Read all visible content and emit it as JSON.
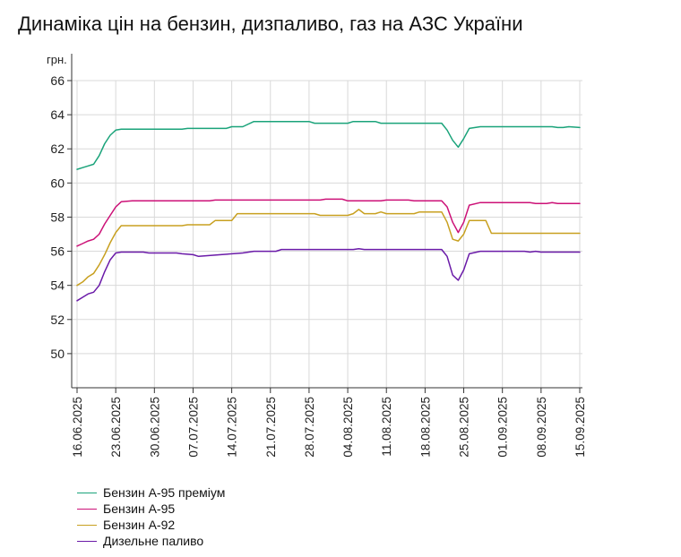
{
  "chart_data": {
    "type": "line",
    "title": "Динаміка цін на бензин, дизпаливо, газ на АЗС України",
    "ylabel": "грн.",
    "xlabel": "",
    "ylim": [
      48,
      66
    ],
    "y_ticks": [
      50,
      52,
      54,
      56,
      58,
      60,
      62,
      64,
      66
    ],
    "x_tick_labels": [
      "16.06.2025",
      "23.06.2025",
      "30.06.2025",
      "07.07.2025",
      "14.07.2025",
      "21.07.2025",
      "28.07.2025",
      "04.08.2025",
      "11.08.2025",
      "18.08.2025",
      "25.08.2025",
      "01.09.2025",
      "08.09.2025",
      "15.09.2025"
    ],
    "grid": true,
    "legend_position": "bottom-left",
    "series": [
      {
        "name": "Бензин А-95 преміум",
        "color": "#1aa37a",
        "points": [
          [
            "16.06.2025",
            60.8
          ],
          [
            "17.06.2025",
            60.9
          ],
          [
            "18.06.2025",
            61.0
          ],
          [
            "19.06.2025",
            61.1
          ],
          [
            "20.06.2025",
            61.6
          ],
          [
            "21.06.2025",
            62.3
          ],
          [
            "22.06.2025",
            62.8
          ],
          [
            "23.06.2025",
            63.1
          ],
          [
            "24.06.2025",
            63.15
          ],
          [
            "26.06.2025",
            63.15
          ],
          [
            "30.06.2025",
            63.15
          ],
          [
            "05.07.2025",
            63.15
          ],
          [
            "06.07.2025",
            63.2
          ],
          [
            "13.07.2025",
            63.2
          ],
          [
            "14.07.2025",
            63.3
          ],
          [
            "16.07.2025",
            63.3
          ],
          [
            "18.07.2025",
            63.6
          ],
          [
            "28.07.2025",
            63.6
          ],
          [
            "29.07.2025",
            63.5
          ],
          [
            "04.08.2025",
            63.5
          ],
          [
            "05.08.2025",
            63.6
          ],
          [
            "09.08.2025",
            63.6
          ],
          [
            "10.08.2025",
            63.5
          ],
          [
            "21.08.2025",
            63.5
          ],
          [
            "22.08.2025",
            63.1
          ],
          [
            "23.08.2025",
            62.5
          ],
          [
            "24.08.2025",
            62.1
          ],
          [
            "25.08.2025",
            62.6
          ],
          [
            "26.08.2025",
            63.2
          ],
          [
            "28.08.2025",
            63.3
          ],
          [
            "10.09.2025",
            63.3
          ],
          [
            "11.09.2025",
            63.25
          ],
          [
            "12.09.2025",
            63.25
          ],
          [
            "13.09.2025",
            63.3
          ],
          [
            "15.09.2025",
            63.25
          ]
        ]
      },
      {
        "name": "Бензин А-95",
        "color": "#cc1177",
        "points": [
          [
            "16.06.2025",
            56.3
          ],
          [
            "17.06.2025",
            56.45
          ],
          [
            "18.06.2025",
            56.6
          ],
          [
            "19.06.2025",
            56.7
          ],
          [
            "20.06.2025",
            57.0
          ],
          [
            "21.06.2025",
            57.6
          ],
          [
            "22.06.2025",
            58.1
          ],
          [
            "23.06.2025",
            58.6
          ],
          [
            "24.06.2025",
            58.9
          ],
          [
            "26.06.2025",
            58.95
          ],
          [
            "10.07.2025",
            58.95
          ],
          [
            "11.07.2025",
            59.0
          ],
          [
            "30.07.2025",
            59.0
          ],
          [
            "31.07.2025",
            59.05
          ],
          [
            "03.08.2025",
            59.05
          ],
          [
            "04.08.2025",
            58.95
          ],
          [
            "10.08.2025",
            58.95
          ],
          [
            "11.08.2025",
            59.0
          ],
          [
            "15.08.2025",
            59.0
          ],
          [
            "16.08.2025",
            58.95
          ],
          [
            "21.08.2025",
            58.95
          ],
          [
            "22.08.2025",
            58.6
          ],
          [
            "23.08.2025",
            57.7
          ],
          [
            "24.08.2025",
            57.1
          ],
          [
            "25.08.2025",
            57.7
          ],
          [
            "26.08.2025",
            58.7
          ],
          [
            "28.08.2025",
            58.85
          ],
          [
            "06.09.2025",
            58.85
          ],
          [
            "07.09.2025",
            58.8
          ],
          [
            "09.09.2025",
            58.8
          ],
          [
            "10.09.2025",
            58.85
          ],
          [
            "11.09.2025",
            58.8
          ],
          [
            "15.09.2025",
            58.8
          ]
        ]
      },
      {
        "name": "Бензин А-92",
        "color": "#c8a020",
        "points": [
          [
            "16.06.2025",
            54.0
          ],
          [
            "17.06.2025",
            54.2
          ],
          [
            "18.06.2025",
            54.5
          ],
          [
            "19.06.2025",
            54.7
          ],
          [
            "20.06.2025",
            55.2
          ],
          [
            "21.06.2025",
            55.8
          ],
          [
            "22.06.2025",
            56.5
          ],
          [
            "23.06.2025",
            57.1
          ],
          [
            "24.06.2025",
            57.5
          ],
          [
            "05.07.2025",
            57.5
          ],
          [
            "06.07.2025",
            57.55
          ],
          [
            "10.07.2025",
            57.55
          ],
          [
            "11.07.2025",
            57.8
          ],
          [
            "14.07.2025",
            57.8
          ],
          [
            "15.07.2025",
            58.2
          ],
          [
            "29.07.2025",
            58.2
          ],
          [
            "30.07.2025",
            58.1
          ],
          [
            "04.08.2025",
            58.1
          ],
          [
            "05.08.2025",
            58.2
          ],
          [
            "06.08.2025",
            58.45
          ],
          [
            "07.08.2025",
            58.2
          ],
          [
            "09.08.2025",
            58.2
          ],
          [
            "10.08.2025",
            58.3
          ],
          [
            "11.08.2025",
            58.2
          ],
          [
            "16.08.2025",
            58.2
          ],
          [
            "17.08.2025",
            58.3
          ],
          [
            "21.08.2025",
            58.3
          ],
          [
            "22.08.2025",
            57.7
          ],
          [
            "23.08.2025",
            56.7
          ],
          [
            "24.08.2025",
            56.6
          ],
          [
            "25.08.2025",
            57.0
          ],
          [
            "26.08.2025",
            57.8
          ],
          [
            "29.08.2025",
            57.8
          ],
          [
            "30.08.2025",
            57.05
          ],
          [
            "15.09.2025",
            57.05
          ]
        ]
      },
      {
        "name": "Дизельне паливо",
        "color": "#6a1aa8",
        "points": [
          [
            "16.06.2025",
            53.1
          ],
          [
            "17.06.2025",
            53.3
          ],
          [
            "18.06.2025",
            53.5
          ],
          [
            "19.06.2025",
            53.6
          ],
          [
            "20.06.2025",
            54.0
          ],
          [
            "21.06.2025",
            54.8
          ],
          [
            "22.06.2025",
            55.5
          ],
          [
            "23.06.2025",
            55.9
          ],
          [
            "24.06.2025",
            55.95
          ],
          [
            "28.06.2025",
            55.95
          ],
          [
            "29.06.2025",
            55.9
          ],
          [
            "04.07.2025",
            55.9
          ],
          [
            "05.07.2025",
            55.85
          ],
          [
            "07.07.2025",
            55.8
          ],
          [
            "08.07.2025",
            55.7
          ],
          [
            "12.07.2025",
            55.8
          ],
          [
            "16.07.2025",
            55.9
          ],
          [
            "18.07.2025",
            56.0
          ],
          [
            "22.07.2025",
            56.0
          ],
          [
            "23.07.2025",
            56.1
          ],
          [
            "05.08.2025",
            56.1
          ],
          [
            "06.08.2025",
            56.15
          ],
          [
            "07.08.2025",
            56.1
          ],
          [
            "21.08.2025",
            56.1
          ],
          [
            "22.08.2025",
            55.7
          ],
          [
            "23.08.2025",
            54.6
          ],
          [
            "24.08.2025",
            54.3
          ],
          [
            "25.08.2025",
            54.9
          ],
          [
            "26.08.2025",
            55.85
          ],
          [
            "28.08.2025",
            56.0
          ],
          [
            "05.09.2025",
            56.0
          ],
          [
            "06.09.2025",
            55.95
          ],
          [
            "07.09.2025",
            56.0
          ],
          [
            "08.09.2025",
            55.95
          ],
          [
            "15.09.2025",
            55.95
          ]
        ]
      }
    ]
  }
}
